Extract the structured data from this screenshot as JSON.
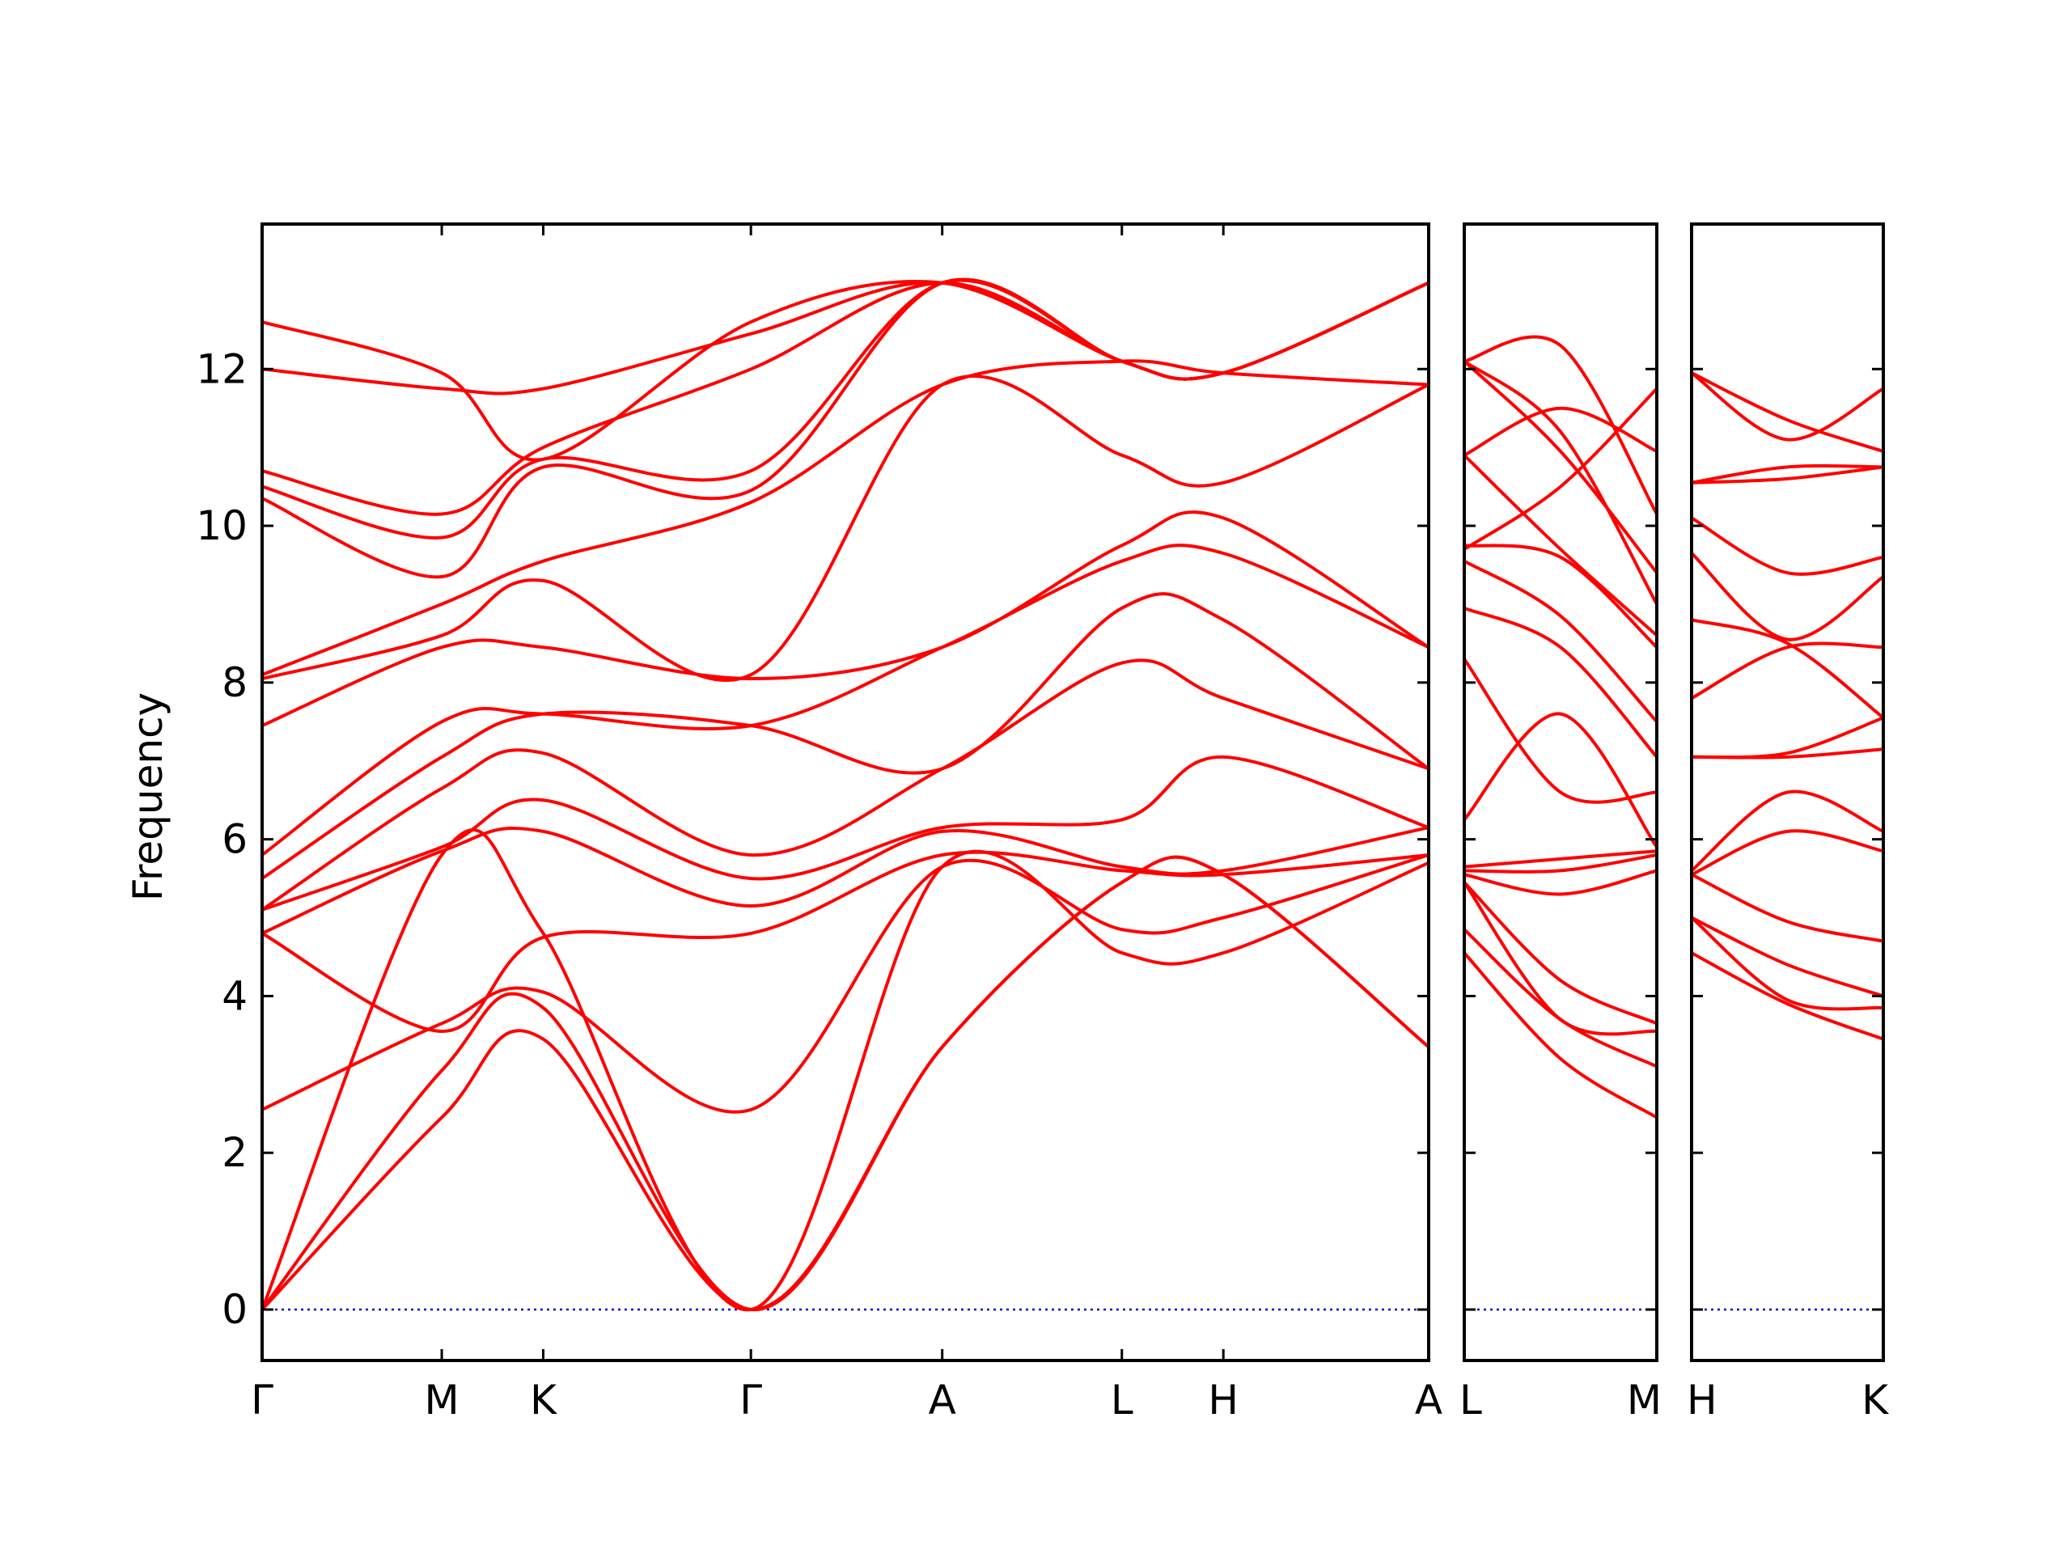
{
  "chart_data": {
    "type": "line",
    "title": "",
    "ylabel": "Frequency",
    "xlabel": "",
    "ylim": [
      -0.65,
      13.85
    ],
    "yticks": [
      0,
      2,
      4,
      6,
      8,
      10,
      12
    ],
    "grid": false,
    "legend": "none",
    "colors": {
      "band": "#ff0000",
      "zero": "#0000cc",
      "axes": "#000000"
    },
    "panels": [
      {
        "name": "panel-1",
        "xlim": [
          0,
          1
        ],
        "high_symmetry_points": [
          {
            "label": "Γ",
            "x": 0.0
          },
          {
            "label": "M",
            "x": 0.154
          },
          {
            "label": "K",
            "x": 0.241
          },
          {
            "label": "Γ",
            "x": 0.419
          },
          {
            "label": "A",
            "x": 0.583
          },
          {
            "label": "L",
            "x": 0.737
          },
          {
            "label": "H",
            "x": 0.824
          },
          {
            "label": "A",
            "x": 1.0
          }
        ],
        "bands": [
          {
            "x": [
              0,
              0.154,
              0.241,
              0.419,
              0.583,
              0.737,
              0.824,
              1.0
            ],
            "y": [
              0,
              2.45,
              3.45,
              0,
              3.35,
              5.45,
              5.55,
              3.35
            ]
          },
          {
            "x": [
              0,
              0.154,
              0.241,
              0.419,
              0.583,
              0.737,
              0.824,
              1.0
            ],
            "y": [
              0,
              3.05,
              3.85,
              0,
              3.35,
              5.45,
              5.55,
              3.35
            ]
          },
          {
            "x": [
              0,
              0.154,
              0.241,
              0.419,
              0.583,
              0.737,
              0.824,
              1.0
            ],
            "y": [
              0,
              5.8,
              4.8,
              0,
              5.65,
              4.55,
              4.55,
              5.7
            ]
          },
          {
            "x": [
              0,
              0.154,
              0.241,
              0.419,
              0.583,
              0.737,
              0.824,
              1.0
            ],
            "y": [
              2.55,
              3.65,
              4.05,
              2.55,
              5.65,
              4.85,
              5.0,
              5.8
            ]
          },
          {
            "x": [
              0,
              0.154,
              0.241,
              0.419,
              0.583,
              0.737,
              0.824,
              1.0
            ],
            "y": [
              4.8,
              3.55,
              4.75,
              4.8,
              5.8,
              5.6,
              5.55,
              5.8
            ]
          },
          {
            "x": [
              0,
              0.154,
              0.241,
              0.419,
              0.583,
              0.737,
              0.824,
              1.0
            ],
            "y": [
              4.8,
              5.85,
              6.1,
              5.15,
              6.1,
              5.65,
              5.6,
              6.15
            ]
          },
          {
            "x": [
              0,
              0.154,
              0.241,
              0.419,
              0.583,
              0.737,
              0.824,
              1.0
            ],
            "y": [
              5.1,
              5.9,
              6.5,
              5.5,
              6.15,
              6.25,
              7.05,
              6.15
            ]
          },
          {
            "x": [
              0,
              0.154,
              0.241,
              0.419,
              0.583,
              0.737,
              0.824,
              1.0
            ],
            "y": [
              5.1,
              6.65,
              7.1,
              5.8,
              6.9,
              8.25,
              7.8,
              6.9
            ]
          },
          {
            "x": [
              0,
              0.154,
              0.241,
              0.419,
              0.583,
              0.737,
              0.824,
              1.0
            ],
            "y": [
              5.5,
              7.05,
              7.6,
              7.45,
              6.9,
              8.95,
              8.8,
              6.9
            ]
          },
          {
            "x": [
              0,
              0.154,
              0.241,
              0.419,
              0.583,
              0.737,
              0.824,
              1.0
            ],
            "y": [
              5.8,
              7.5,
              7.6,
              7.45,
              8.45,
              9.55,
              9.65,
              8.45
            ]
          },
          {
            "x": [
              0,
              0.154,
              0.241,
              0.419,
              0.583,
              0.737,
              0.824,
              1.0
            ],
            "y": [
              7.45,
              8.45,
              8.45,
              8.05,
              8.45,
              9.75,
              10.1,
              8.45
            ]
          },
          {
            "x": [
              0,
              0.154,
              0.241,
              0.419,
              0.583,
              0.737,
              0.824,
              1.0
            ],
            "y": [
              8.05,
              8.6,
              9.3,
              8.1,
              11.8,
              10.9,
              10.55,
              11.8
            ]
          },
          {
            "x": [
              0,
              0.154,
              0.241,
              0.419,
              0.583,
              0.737,
              0.824,
              1.0
            ],
            "y": [
              8.1,
              9.0,
              9.55,
              10.3,
              11.8,
              12.1,
              11.95,
              11.8
            ]
          },
          {
            "x": [
              0,
              0.154,
              0.241,
              0.419,
              0.583,
              0.737,
              0.824,
              1.0
            ],
            "y": [
              10.35,
              9.35,
              10.75,
              10.45,
              13.1,
              12.1,
              11.95,
              13.1
            ]
          },
          {
            "x": [
              0,
              0.154,
              0.241,
              0.419,
              0.583,
              0.737,
              0.824,
              1.0
            ],
            "y": [
              10.5,
              9.85,
              10.85,
              10.7,
              13.1,
              12.1,
              11.95,
              13.1
            ]
          },
          {
            "x": [
              0,
              0.154,
              0.241,
              0.419,
              0.583,
              0.737,
              0.824,
              1.0
            ],
            "y": [
              10.7,
              10.15,
              11.0,
              12.0,
              13.1,
              12.1,
              11.95,
              13.1
            ]
          },
          {
            "x": [
              0,
              0.154,
              0.241,
              0.419,
              0.583,
              0.737,
              0.824,
              1.0
            ],
            "y": [
              12.0,
              11.75,
              11.75,
              12.45,
              13.1,
              12.1,
              11.95,
              13.1
            ]
          },
          {
            "x": [
              0,
              0.154,
              0.241,
              0.419,
              0.583,
              0.737,
              0.824,
              1.0
            ],
            "y": [
              12.6,
              11.95,
              10.85,
              12.6,
              13.1,
              12.1,
              11.95,
              13.1
            ]
          }
        ]
      },
      {
        "name": "panel-2",
        "xlim": [
          0,
          1
        ],
        "high_symmetry_points": [
          {
            "label": "L",
            "x": 0.0
          },
          {
            "label": "M",
            "x": 1.0
          }
        ],
        "bands": [
          {
            "x": [
              0,
              0.5,
              1.0
            ],
            "y": [
              4.55,
              3.2,
              2.45
            ]
          },
          {
            "x": [
              0,
              0.5,
              1.0
            ],
            "y": [
              4.85,
              3.7,
              3.1
            ]
          },
          {
            "x": [
              0,
              0.5,
              1.0
            ],
            "y": [
              5.45,
              3.7,
              3.55
            ]
          },
          {
            "x": [
              0,
              0.5,
              1.0
            ],
            "y": [
              5.45,
              4.2,
              3.65
            ]
          },
          {
            "x": [
              0,
              0.5,
              1.0
            ],
            "y": [
              5.55,
              5.3,
              5.6
            ]
          },
          {
            "x": [
              0,
              0.5,
              1.0
            ],
            "y": [
              5.6,
              5.6,
              5.8
            ]
          },
          {
            "x": [
              0,
              0.5,
              1.0
            ],
            "y": [
              5.65,
              5.75,
              5.85
            ]
          },
          {
            "x": [
              0,
              0.5,
              1.0
            ],
            "y": [
              6.25,
              7.6,
              5.9
            ]
          },
          {
            "x": [
              0,
              0.5,
              1.0
            ],
            "y": [
              8.3,
              6.6,
              6.6
            ]
          },
          {
            "x": [
              0,
              0.5,
              1.0
            ],
            "y": [
              8.95,
              8.45,
              7.05
            ]
          },
          {
            "x": [
              0,
              0.5,
              1.0
            ],
            "y": [
              9.55,
              8.85,
              7.5
            ]
          },
          {
            "x": [
              0,
              0.5,
              1.0
            ],
            "y": [
              9.75,
              9.6,
              8.45
            ]
          },
          {
            "x": [
              0,
              0.5,
              1.0
            ],
            "y": [
              10.9,
              9.7,
              8.6
            ]
          },
          {
            "x": [
              0,
              0.5,
              1.0
            ],
            "y": [
              12.1,
              11.2,
              9.0
            ]
          },
          {
            "x": [
              0,
              0.5,
              1.0
            ],
            "y": [
              12.1,
              10.95,
              9.4
            ]
          },
          {
            "x": [
              0,
              0.5,
              1.0
            ],
            "y": [
              12.1,
              12.3,
              10.15
            ]
          },
          {
            "x": [
              0,
              0.5,
              1.0
            ],
            "y": [
              10.9,
              11.5,
              10.95
            ]
          },
          {
            "x": [
              0,
              0.5,
              1.0
            ],
            "y": [
              9.7,
              10.5,
              11.75
            ]
          }
        ]
      },
      {
        "name": "panel-3",
        "xlim": [
          0,
          1
        ],
        "high_symmetry_points": [
          {
            "label": "H",
            "x": 0.0
          },
          {
            "label": "K",
            "x": 1.0
          }
        ],
        "bands": [
          {
            "x": [
              0,
              0.5,
              1.0
            ],
            "y": [
              4.55,
              3.9,
              3.45
            ]
          },
          {
            "x": [
              0,
              0.5,
              1.0
            ],
            "y": [
              5.0,
              3.95,
              3.85
            ]
          },
          {
            "x": [
              0,
              0.5,
              1.0
            ],
            "y": [
              5.0,
              4.4,
              4.0
            ]
          },
          {
            "x": [
              0,
              0.5,
              1.0
            ],
            "y": [
              5.55,
              4.95,
              4.7
            ]
          },
          {
            "x": [
              0,
              0.5,
              1.0
            ],
            "y": [
              5.55,
              6.1,
              5.85
            ]
          },
          {
            "x": [
              0,
              0.5,
              1.0
            ],
            "y": [
              5.6,
              6.6,
              6.1
            ]
          },
          {
            "x": [
              0,
              0.5,
              1.0
            ],
            "y": [
              7.05,
              7.05,
              7.15
            ]
          },
          {
            "x": [
              0,
              0.5,
              1.0
            ],
            "y": [
              7.05,
              7.1,
              7.55
            ]
          },
          {
            "x": [
              0,
              0.5,
              1.0
            ],
            "y": [
              7.8,
              8.45,
              8.45
            ]
          },
          {
            "x": [
              0,
              0.5,
              1.0
            ],
            "y": [
              8.8,
              8.5,
              7.55
            ]
          },
          {
            "x": [
              0,
              0.5,
              1.0
            ],
            "y": [
              9.65,
              8.55,
              9.35
            ]
          },
          {
            "x": [
              0,
              0.5,
              1.0
            ],
            "y": [
              10.1,
              9.4,
              9.6
            ]
          },
          {
            "x": [
              0,
              0.5,
              1.0
            ],
            "y": [
              10.55,
              10.75,
              10.75
            ]
          },
          {
            "x": [
              0,
              0.5,
              1.0
            ],
            "y": [
              10.55,
              10.6,
              10.75
            ]
          },
          {
            "x": [
              0,
              0.5,
              1.0
            ],
            "y": [
              11.95,
              11.35,
              10.95
            ]
          },
          {
            "x": [
              0,
              0.5,
              1.0
            ],
            "y": [
              11.95,
              11.1,
              11.75
            ]
          }
        ]
      }
    ]
  }
}
